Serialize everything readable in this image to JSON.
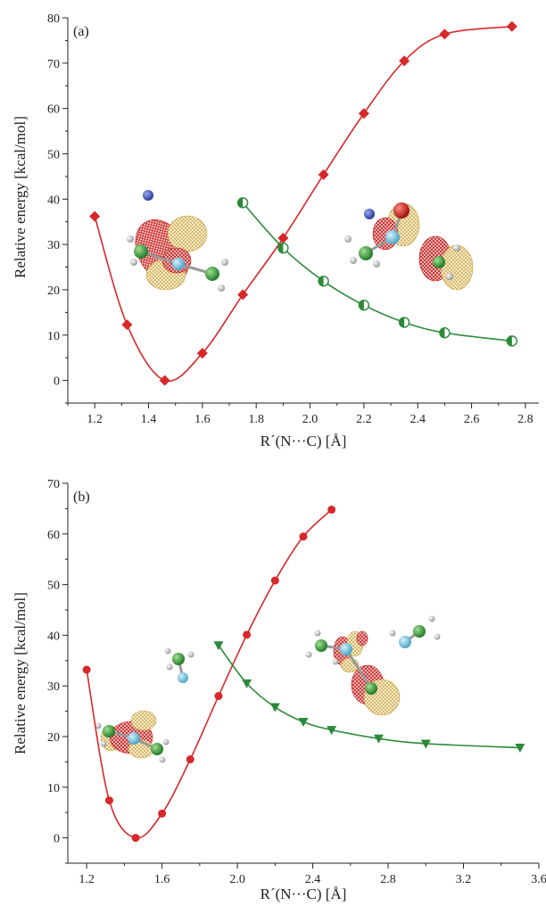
{
  "chart_data": [
    {
      "type": "line",
      "panel_label": "(a)",
      "xlabel": "R´(N···C) [Å]",
      "ylabel": "Relative energy [kcal/mol]",
      "xlim": [
        1.1,
        2.85
      ],
      "ylim": [
        -5,
        80
      ],
      "xticks": [
        "1.2",
        "1.4",
        "1.6",
        "1.8",
        "2.0",
        "2.2",
        "2.4",
        "2.6",
        "2.8"
      ],
      "yticks": [
        "0",
        "10",
        "20",
        "30",
        "40",
        "50",
        "60",
        "70",
        "80"
      ],
      "series": [
        {
          "marker": "diamond",
          "color": "#d7282a",
          "x": [
            1.2,
            1.32,
            1.46,
            1.6,
            1.75,
            1.9,
            2.05,
            2.2,
            2.35,
            2.5,
            2.75
          ],
          "y": [
            36.2,
            12.3,
            0,
            6,
            18.9,
            31.4,
            45.4,
            58.9,
            70.5,
            76.4,
            78.1
          ]
        },
        {
          "marker": "half-circle",
          "color": "#2b8a3a",
          "x": [
            1.75,
            1.9,
            2.05,
            2.2,
            2.35,
            2.5,
            2.75
          ],
          "y": [
            39.2,
            29.2,
            21.9,
            16.6,
            12.8,
            10.5,
            8.7
          ]
        }
      ],
      "insets": [
        {
          "name": "left-molecular-orbital-inset"
        },
        {
          "name": "right-molecular-orbital-inset"
        }
      ]
    },
    {
      "type": "line",
      "panel_label": "(b)",
      "xlabel": "R´(N···C) [Å]",
      "ylabel": "Relative energy [kcal/mol]",
      "xlim": [
        1.1,
        3.6
      ],
      "ylim": [
        -5,
        70
      ],
      "xticks": [
        "1.2",
        "1.6",
        "2.0",
        "2.4",
        "2.8",
        "3.2",
        "3.6"
      ],
      "yticks": [
        "0",
        "10",
        "20",
        "30",
        "40",
        "50",
        "60",
        "70"
      ],
      "series": [
        {
          "marker": "circle",
          "color": "#d7282a",
          "x": [
            1.2,
            1.32,
            1.46,
            1.6,
            1.75,
            1.9,
            2.05,
            2.2,
            2.35,
            2.5
          ],
          "y": [
            33.2,
            7.4,
            0,
            4.8,
            15.5,
            28,
            40.1,
            50.8,
            59.5,
            64.8
          ]
        },
        {
          "marker": "triangle-down",
          "color": "#2b8a3a",
          "x": [
            1.9,
            2.05,
            2.2,
            2.35,
            2.5,
            2.75,
            3.0,
            3.5
          ],
          "y": [
            38,
            30.5,
            25.8,
            22.9,
            21.3,
            19.6,
            18.6,
            17.8
          ]
        }
      ],
      "insets": [
        {
          "name": "left-molecular-orbital-inset"
        },
        {
          "name": "right-molecular-orbital-inset"
        }
      ]
    }
  ]
}
